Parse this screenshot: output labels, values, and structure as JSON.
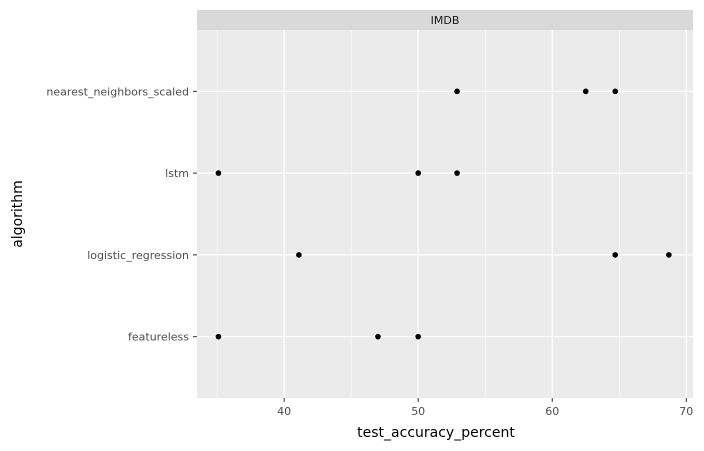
{
  "chart_data": {
    "type": "scatter",
    "facet": "IMDB",
    "xlabel": "test_accuracy_percent",
    "ylabel": "algorithm",
    "xlim": [
      33.5,
      70.5
    ],
    "x_ticks": [
      40,
      50,
      60,
      70
    ],
    "categories": [
      "featureless",
      "logistic_regression",
      "lstm",
      "nearest_neighbors_scaled"
    ],
    "grid": true,
    "legend": "none",
    "points": [
      {
        "y": "nearest_neighbors_scaled",
        "x": 52.9
      },
      {
        "y": "nearest_neighbors_scaled",
        "x": 62.5
      },
      {
        "y": "nearest_neighbors_scaled",
        "x": 64.7
      },
      {
        "y": "lstm",
        "x": 35.1
      },
      {
        "y": "lstm",
        "x": 50.0
      },
      {
        "y": "lstm",
        "x": 52.9
      },
      {
        "y": "logistic_regression",
        "x": 41.1
      },
      {
        "y": "logistic_regression",
        "x": 64.7
      },
      {
        "y": "logistic_regression",
        "x": 68.7
      },
      {
        "y": "featureless",
        "x": 35.1
      },
      {
        "y": "featureless",
        "x": 47.0
      },
      {
        "y": "featureless",
        "x": 50.0
      }
    ],
    "colors": {
      "panel": "#ebebeb",
      "strip": "#d9d9d9",
      "grid_major": "#ffffff",
      "point": "#000000"
    }
  }
}
